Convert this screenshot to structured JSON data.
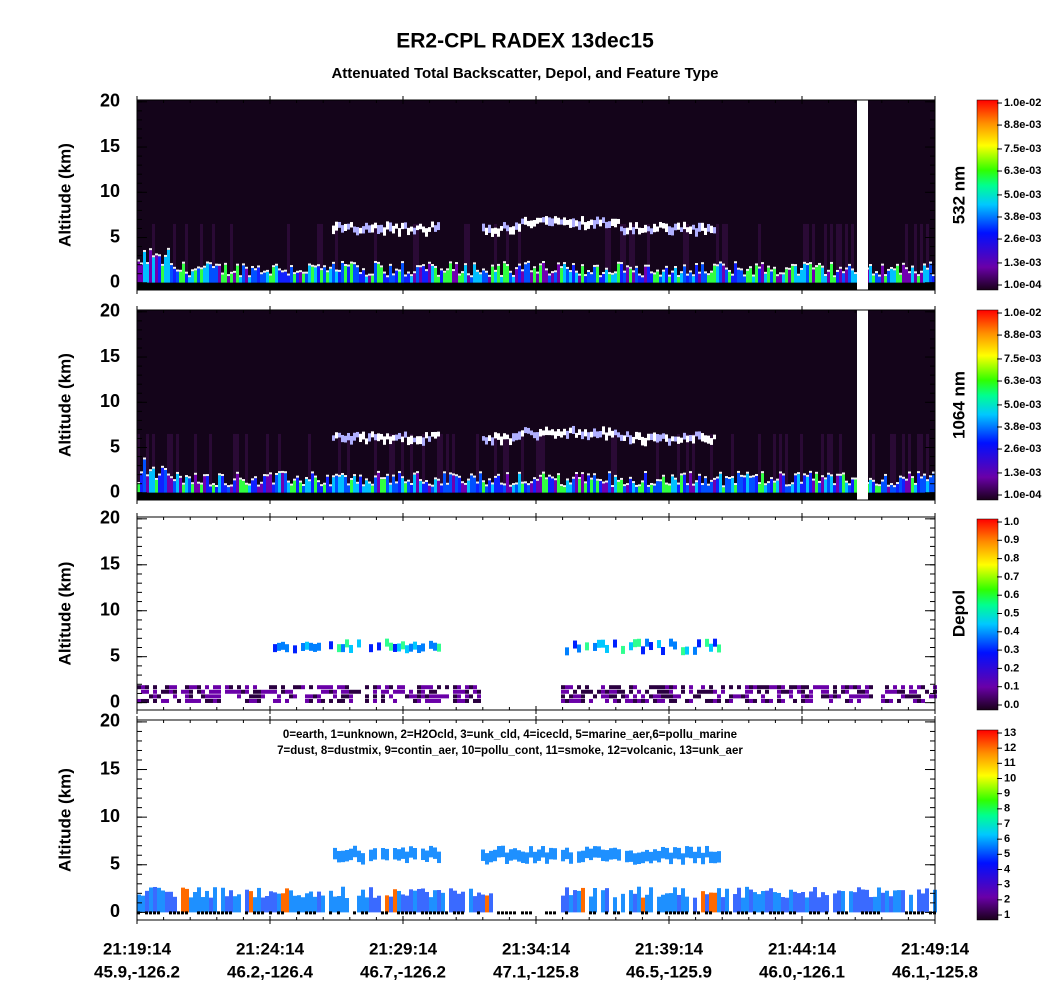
{
  "title": "ER2-CPL RADEX 13dec15",
  "subtitle": "Attenuated Total Backscatter, Depol, and Feature Type",
  "chart_data": [
    {
      "type": "curtain",
      "ylabel": "Altitude (km)",
      "ylim": [
        -0.8,
        20.2
      ],
      "yticks": [
        0,
        5,
        10,
        15,
        20
      ],
      "colorbar_label": "532 nm",
      "colorbar_ticks": [
        {
          "value": 0.0001,
          "label": "1.0e-04"
        },
        {
          "value": 0.0013,
          "label": "1.3e-03"
        },
        {
          "value": 0.0026,
          "label": "2.6e-03"
        },
        {
          "value": 0.0038,
          "label": "3.8e-03"
        },
        {
          "value": 0.005,
          "label": "5.0e-03"
        },
        {
          "value": 0.0063,
          "label": "6.3e-03"
        },
        {
          "value": 0.0075,
          "label": "7.5e-03"
        },
        {
          "value": 0.0088,
          "label": "8.8e-03"
        },
        {
          "value": 0.01,
          "label": "1.0e-02"
        }
      ]
    },
    {
      "type": "curtain",
      "ylabel": "Altitude (km)",
      "ylim": [
        -0.8,
        20.2
      ],
      "yticks": [
        0,
        5,
        10,
        15,
        20
      ],
      "colorbar_label": "1064 nm",
      "colorbar_ticks": [
        {
          "value": 0.0001,
          "label": "1.0e-04"
        },
        {
          "value": 0.0013,
          "label": "1.3e-03"
        },
        {
          "value": 0.0026,
          "label": "2.6e-03"
        },
        {
          "value": 0.0038,
          "label": "3.8e-03"
        },
        {
          "value": 0.005,
          "label": "5.0e-03"
        },
        {
          "value": 0.0063,
          "label": "6.3e-03"
        },
        {
          "value": 0.0075,
          "label": "7.5e-03"
        },
        {
          "value": 0.0088,
          "label": "8.8e-03"
        },
        {
          "value": 0.01,
          "label": "1.0e-02"
        }
      ]
    },
    {
      "type": "depol",
      "ylabel": "Altitude (km)",
      "ylim": [
        -0.8,
        20.2
      ],
      "yticks": [
        0,
        5,
        10,
        15,
        20
      ],
      "colorbar_label": "Depol",
      "colorbar_ticks": [
        {
          "value": 0,
          "label": "0.0"
        },
        0.1,
        0.2,
        0.3,
        0.4,
        0.5,
        0.6,
        0.7,
        0.8,
        0.9,
        {
          "value": 1,
          "label": "1.0"
        }
      ]
    },
    {
      "type": "feature",
      "ylabel": "Altitude (km)",
      "ylim": [
        -0.8,
        20.2
      ],
      "yticks": [
        0,
        5,
        10,
        15,
        20
      ],
      "colorbar_ticks": [
        1,
        2,
        3,
        4,
        5,
        6,
        7,
        8,
        9,
        10,
        11,
        12,
        13
      ],
      "annotations": [
        "0=earth, 1=unknown, 2=H2Ocld, 3=unk_cld, 4=icecld, 5=marine_aer,6=pollu_marine",
        "7=dust, 8=dustmix, 9=contin_aer, 10=pollu_cont, 11=smoke, 12=volcanic, 13=unk_aer"
      ],
      "categories": [
        "21:19:14",
        "21:24:14",
        "21:29:14",
        "21:34:14",
        "21:39:14",
        "21:44:14",
        "21:49:14"
      ],
      "locations": [
        "45.9,-126.2",
        "46.2,-126.4",
        "46.7,-126.2",
        "47.1,-125.8",
        "46.5,-125.9",
        "46.0,-126.1",
        "46.1,-125.8"
      ]
    }
  ]
}
